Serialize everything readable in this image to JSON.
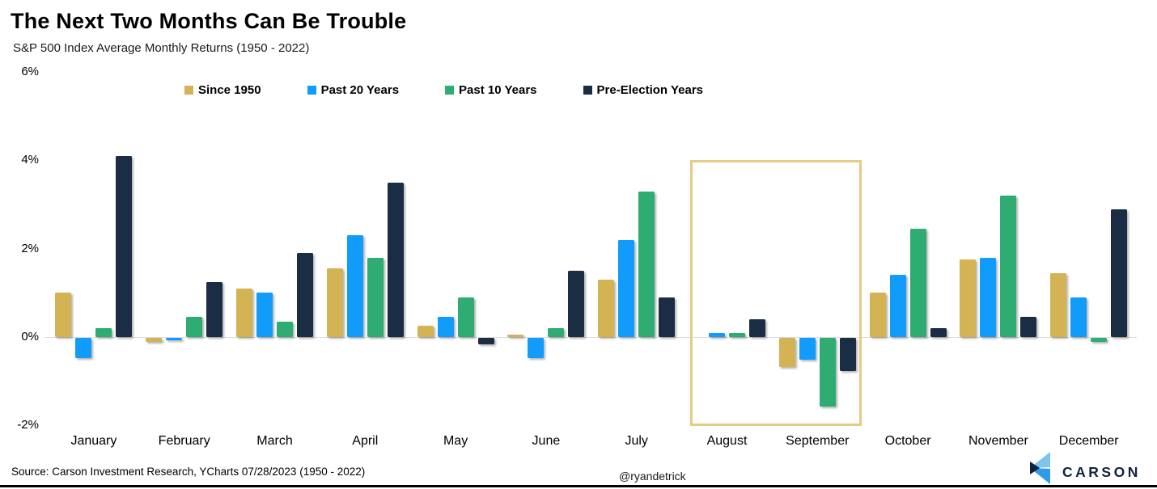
{
  "header": {
    "title": "The Next Two Months Can Be Trouble",
    "subtitle": "S&P 500 Index Average Monthly Returns (1950 - 2022)"
  },
  "chart_data": {
    "type": "bar",
    "title": "The Next Two Months Can Be Trouble",
    "subtitle": "S&P 500 Index Average Monthly Returns (1950 - 2022)",
    "categories": [
      "January",
      "February",
      "March",
      "April",
      "May",
      "June",
      "July",
      "August",
      "September",
      "October",
      "November",
      "December"
    ],
    "series": [
      {
        "name": "Since 1950",
        "color": "#D4B355",
        "values": [
          1.0,
          -0.1,
          1.1,
          1.55,
          0.25,
          0.05,
          1.3,
          0.0,
          -0.65,
          1.0,
          1.75,
          1.45
        ]
      },
      {
        "name": "Past 20 Years",
        "color": "#119BFB",
        "values": [
          -0.45,
          -0.05,
          1.0,
          2.3,
          0.45,
          -0.45,
          2.2,
          0.1,
          -0.5,
          1.4,
          1.8,
          0.9
        ]
      },
      {
        "name": "Past 10 Years",
        "color": "#2EAC72",
        "values": [
          0.2,
          0.45,
          0.35,
          1.8,
          0.9,
          0.2,
          3.3,
          0.1,
          -1.55,
          2.45,
          3.2,
          -0.1
        ]
      },
      {
        "name": "Pre-Election Years",
        "color": "#1B2D44",
        "values": [
          4.1,
          1.25,
          1.9,
          3.5,
          -0.15,
          1.5,
          0.9,
          0.4,
          -0.75,
          0.2,
          0.45,
          2.9
        ]
      }
    ],
    "ylabel": "",
    "xlabel": "",
    "unit": "%",
    "ylim": [
      -2,
      6
    ],
    "y_ticks": [
      {
        "label": "6%",
        "value": 6
      },
      {
        "label": "4%",
        "value": 4
      },
      {
        "label": "2%",
        "value": 2
      },
      {
        "label": "0%",
        "value": 0
      },
      {
        "label": "-2%",
        "value": -2
      }
    ],
    "grid": "zero-line-only",
    "legend_position": "top",
    "highlight": {
      "months": [
        "August",
        "September"
      ],
      "border_color": "#E5CB85"
    }
  },
  "footer": {
    "source": "Source: Carson Investment Research, YCharts 07/28/2023 (1950 - 2022)",
    "handle": "@ryandetrick",
    "brand": "CARSON"
  },
  "colors": {
    "since_1950": "#D4B355",
    "past_20_years": "#119BFB",
    "past_10_years": "#2EAC72",
    "pre_election_years": "#1B2D44",
    "highlight_border": "#E5CB85",
    "zero_gridline": "#DCDCDC",
    "brand_navy": "#0F2340",
    "logo_light_blue": "#7EC3EC",
    "logo_mid_blue": "#2E9BE9"
  }
}
